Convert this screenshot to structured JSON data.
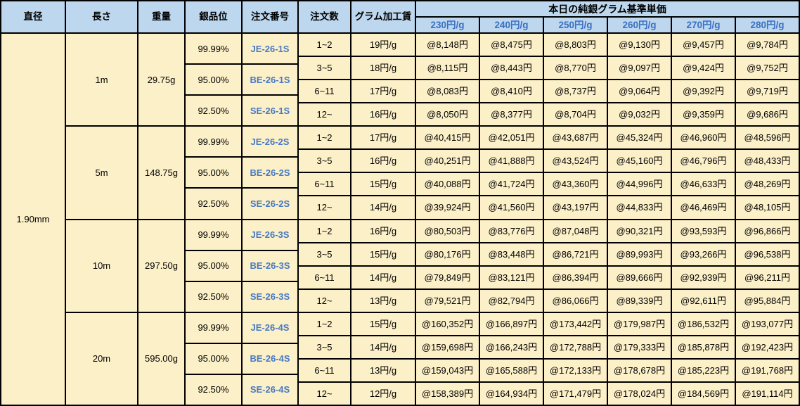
{
  "colors": {
    "header_bg": "#BDD7EE",
    "body_bg": "#FCF0C8",
    "header_blue_text": "#3B6FC0",
    "order_no_blue": "#4779C4",
    "border": "#000000"
  },
  "table": {
    "headers": {
      "diameter": "直径",
      "length": "長さ",
      "weight": "重量",
      "purity": "銀品位",
      "order_no": "注文番号",
      "order_qty": "注文数",
      "gram_fee": "グラム加工賃",
      "price_group": "本日の純銀グラム基準単価",
      "price_cols": [
        "230円/g",
        "240円/g",
        "250円/g",
        "260円/g",
        "270円/g",
        "280円/g"
      ]
    },
    "diameter": "1.90mm",
    "blocks": [
      {
        "length": "1m",
        "weight": "29.75g",
        "purities": [
          {
            "purity": "99.99%",
            "order_no": "JE-26-1S"
          },
          {
            "purity": "95.00%",
            "order_no": "BE-26-1S"
          },
          {
            "purity": "92.50%",
            "order_no": "SE-26-1S"
          }
        ],
        "rows": [
          {
            "qty": "1~2",
            "fee": "19円/g",
            "prices": [
              "@8,148円",
              "@8,475円",
              "@8,803円",
              "@9,130円",
              "@9,457円",
              "@9,784円"
            ]
          },
          {
            "qty": "3~5",
            "fee": "18円/g",
            "prices": [
              "@8,115円",
              "@8,443円",
              "@8,770円",
              "@9,097円",
              "@9,424円",
              "@9,752円"
            ]
          },
          {
            "qty": "6~11",
            "fee": "17円/g",
            "prices": [
              "@8,083円",
              "@8,410円",
              "@8,737円",
              "@9,064円",
              "@9,392円",
              "@9,719円"
            ]
          },
          {
            "qty": "12~",
            "fee": "16円/g",
            "prices": [
              "@8,050円",
              "@8,377円",
              "@8,704円",
              "@9,032円",
              "@9,359円",
              "@9,686円"
            ]
          }
        ]
      },
      {
        "length": "5m",
        "weight": "148.75g",
        "purities": [
          {
            "purity": "99.99%",
            "order_no": "JE-26-2S"
          },
          {
            "purity": "95.00%",
            "order_no": "BE-26-2S"
          },
          {
            "purity": "92.50%",
            "order_no": "SE-26-2S"
          }
        ],
        "rows": [
          {
            "qty": "1~2",
            "fee": "17円/g",
            "prices": [
              "@40,415円",
              "@42,051円",
              "@43,687円",
              "@45,324円",
              "@46,960円",
              "@48,596円"
            ]
          },
          {
            "qty": "3~5",
            "fee": "16円/g",
            "prices": [
              "@40,251円",
              "@41,888円",
              "@43,524円",
              "@45,160円",
              "@46,796円",
              "@48,433円"
            ]
          },
          {
            "qty": "6~11",
            "fee": "15円/g",
            "prices": [
              "@40,088円",
              "@41,724円",
              "@43,360円",
              "@44,996円",
              "@46,633円",
              "@48,269円"
            ]
          },
          {
            "qty": "12~",
            "fee": "14円/g",
            "prices": [
              "@39,924円",
              "@41,560円",
              "@43,197円",
              "@44,833円",
              "@46,469円",
              "@48,105円"
            ]
          }
        ]
      },
      {
        "length": "10m",
        "weight": "297.50g",
        "purities": [
          {
            "purity": "99.99%",
            "order_no": "JE-26-3S"
          },
          {
            "purity": "95.00%",
            "order_no": "BE-26-3S"
          },
          {
            "purity": "92.50%",
            "order_no": "SE-26-3S"
          }
        ],
        "rows": [
          {
            "qty": "1~2",
            "fee": "16円/g",
            "prices": [
              "@80,503円",
              "@83,776円",
              "@87,048円",
              "@90,321円",
              "@93,593円",
              "@96,866円"
            ]
          },
          {
            "qty": "3~5",
            "fee": "15円/g",
            "prices": [
              "@80,176円",
              "@83,448円",
              "@86,721円",
              "@89,993円",
              "@93,266円",
              "@96,538円"
            ]
          },
          {
            "qty": "6~11",
            "fee": "14円/g",
            "prices": [
              "@79,849円",
              "@83,121円",
              "@86,394円",
              "@89,666円",
              "@92,939円",
              "@96,211円"
            ]
          },
          {
            "qty": "12~",
            "fee": "13円/g",
            "prices": [
              "@79,521円",
              "@82,794円",
              "@86,066円",
              "@89,339円",
              "@92,611円",
              "@95,884円"
            ]
          }
        ]
      },
      {
        "length": "20m",
        "weight": "595.00g",
        "purities": [
          {
            "purity": "99.99%",
            "order_no": "JE-26-4S"
          },
          {
            "purity": "95.00%",
            "order_no": "BE-26-4S"
          },
          {
            "purity": "92.50%",
            "order_no": "SE-26-4S"
          }
        ],
        "rows": [
          {
            "qty": "1~2",
            "fee": "15円/g",
            "prices": [
              "@160,352円",
              "@166,897円",
              "@173,442円",
              "@179,987円",
              "@186,532円",
              "@193,077円"
            ]
          },
          {
            "qty": "3~5",
            "fee": "14円/g",
            "prices": [
              "@159,698円",
              "@166,243円",
              "@172,788円",
              "@179,333円",
              "@185,878円",
              "@192,423円"
            ]
          },
          {
            "qty": "6~11",
            "fee": "13円/g",
            "prices": [
              "@159,043円",
              "@165,588円",
              "@172,133円",
              "@178,678円",
              "@185,223円",
              "@191,768円"
            ]
          },
          {
            "qty": "12~",
            "fee": "12円/g",
            "prices": [
              "@158,389円",
              "@164,934円",
              "@171,479円",
              "@178,024円",
              "@184,569円",
              "@191,114円"
            ]
          }
        ]
      }
    ]
  }
}
